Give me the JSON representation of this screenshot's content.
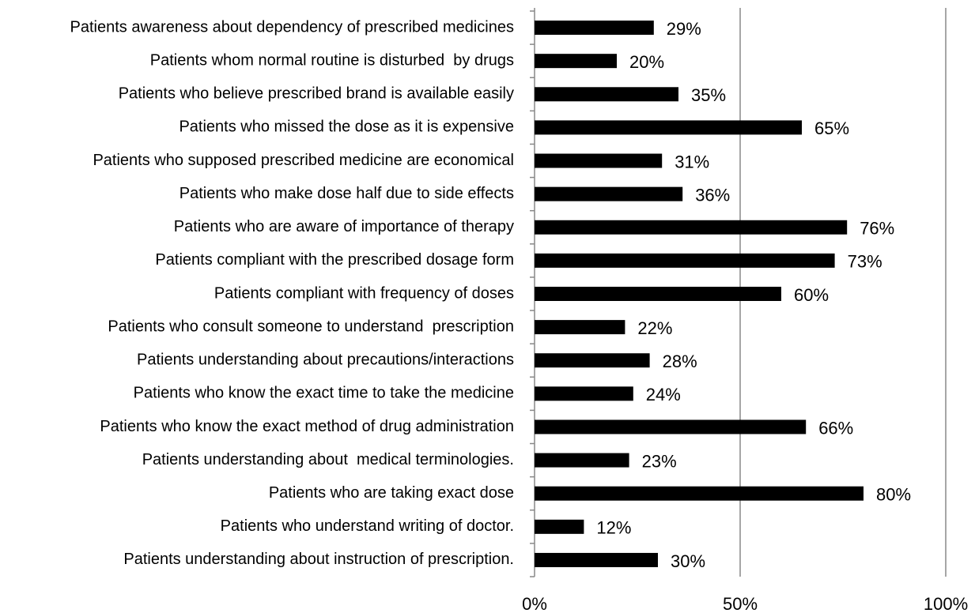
{
  "chart_data": {
    "type": "barh",
    "categories": [
      "Patients awareness about dependency of prescribed medicines",
      "Patients whom normal routine is disturbed  by drugs",
      "Patients who believe prescribed brand is available easily",
      "Patients who missed the dose as it is expensive",
      "Patients who supposed prescribed medicine are economical",
      "Patients who make dose half due to side effects",
      "Patients who are aware of importance of therapy",
      "Patients compliant with the prescribed dosage form",
      "Patients compliant with frequency of doses",
      "Patients who consult someone to understand  prescription",
      "Patients understanding about precautions/interactions",
      "Patients who know the exact time to take the medicine",
      "Patients who know the exact method of drug administration",
      "Patients understanding about  medical terminologies.",
      "Patients who are taking exact dose",
      "Patients who understand writing of doctor.",
      "Patients understanding about instruction of prescription."
    ],
    "values": [
      29,
      20,
      35,
      65,
      31,
      36,
      76,
      73,
      60,
      22,
      28,
      24,
      66,
      23,
      80,
      12,
      30
    ],
    "value_labels": [
      "29%",
      "20%",
      "35%",
      "65%",
      "31%",
      "36%",
      "76%",
      "73%",
      "60%",
      "22%",
      "28%",
      "24%",
      "66%",
      "23%",
      "80%",
      "12%",
      "30%"
    ],
    "color": "#000000",
    "xlim": [
      0,
      100
    ],
    "xticks": [
      {
        "value": 0,
        "label": "0%"
      },
      {
        "value": 50,
        "label": "50%"
      },
      {
        "value": 100,
        "label": "100%"
      }
    ],
    "grid": true
  }
}
